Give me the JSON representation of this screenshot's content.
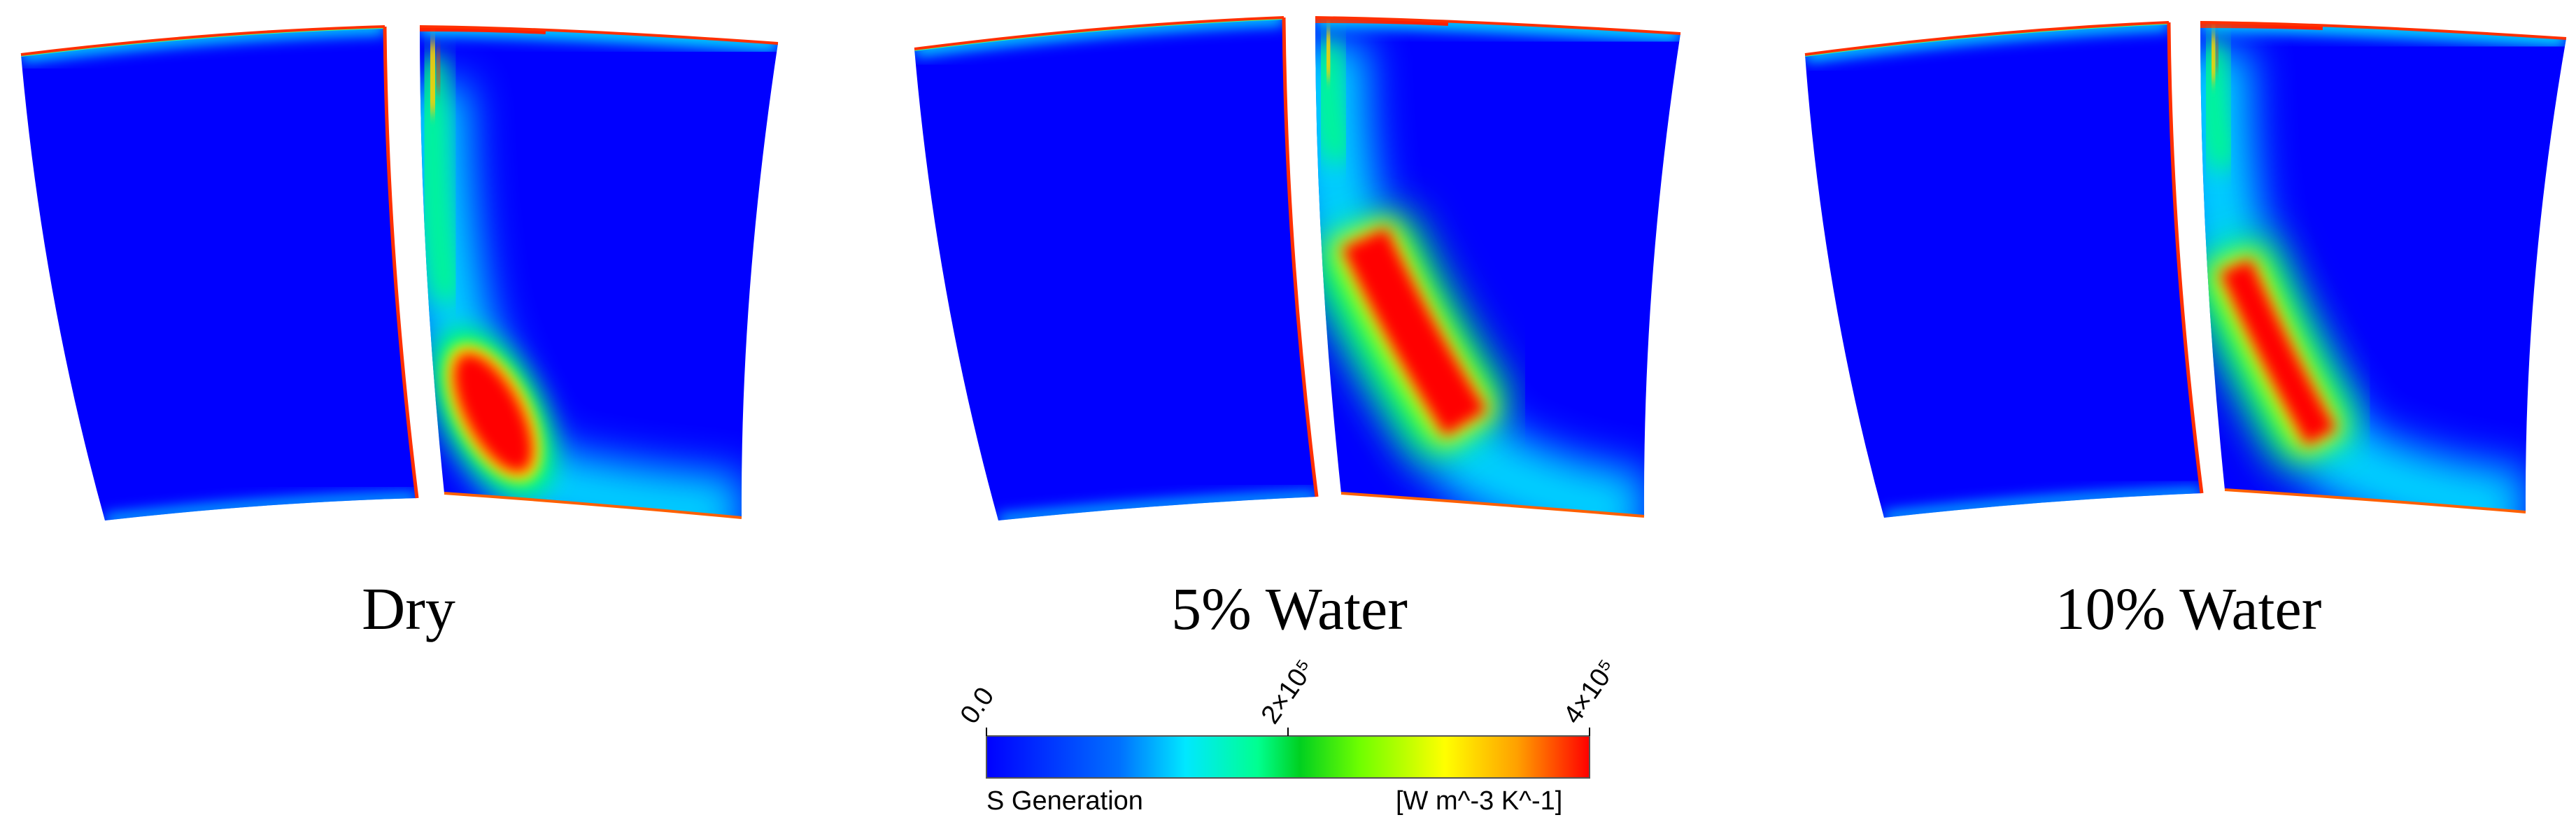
{
  "panels": [
    {
      "caption": "Dry"
    },
    {
      "caption": "5% Water"
    },
    {
      "caption": "10% Water"
    }
  ],
  "colorbar": {
    "variable": "S Generation",
    "unit": "[W m^-3 K^-1]",
    "ticks": [
      "0.0",
      "2×10⁵",
      "4×10⁵"
    ],
    "range": [
      0,
      400000
    ],
    "colors": [
      "#0000ff",
      "#00b0ff",
      "#00ffd0",
      "#00e040",
      "#80ff00",
      "#ffff00",
      "#ffa000",
      "#ff0000"
    ]
  }
}
